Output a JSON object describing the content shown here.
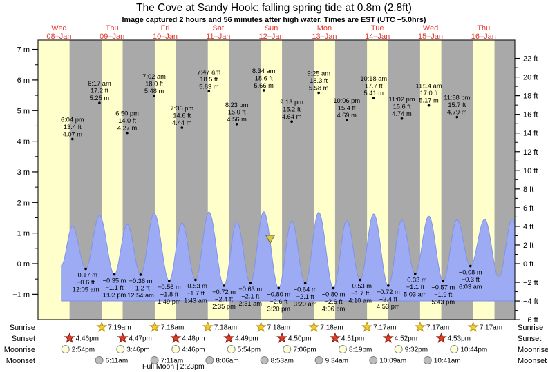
{
  "chart_data": {
    "type": "area",
    "title": "The Cove at Sandy Hook: falling  spring tide at 0.8m (2.8ft)",
    "subtitle": "Image captured 2 hours and 56 minutes after high water. Times are EST (UTC −5.0hrs)",
    "y_axis_left": {
      "unit": "m",
      "min": -1,
      "max": 7,
      "tick_step": 1
    },
    "y_axis_right": {
      "unit": "ft",
      "min": -6,
      "max": 22,
      "tick_step": 2
    },
    "x_axis": {
      "days": [
        {
          "name": "Wed",
          "date": "08–Jan",
          "t_noon": 12
        },
        {
          "name": "Thu",
          "date": "09–Jan",
          "t_noon": 36
        },
        {
          "name": "Fri",
          "date": "10–Jan",
          "t_noon": 60
        },
        {
          "name": "Sat",
          "date": "11–Jan",
          "t_noon": 84
        },
        {
          "name": "Sun",
          "date": "12–Jan",
          "t_noon": 108
        },
        {
          "name": "Mon",
          "date": "13–Jan",
          "t_noon": 132
        },
        {
          "name": "Tue",
          "date": "14–Jan",
          "t_noon": 156
        },
        {
          "name": "Wed",
          "date": "15–Jan",
          "t_noon": 180
        },
        {
          "name": "Thu",
          "date": "16–Jan",
          "t_noon": 204
        }
      ]
    },
    "high_tides": [
      {
        "time": "6:04 pm",
        "ft": "13.4 ft",
        "m": "4.07 m",
        "m_val": 4.07,
        "t": 18.07
      },
      {
        "time": "6:17 am",
        "ft": "17.2 ft",
        "m": "5.25 m",
        "m_val": 5.25,
        "t": 30.28
      },
      {
        "time": "6:50 pm",
        "ft": "14.0 ft",
        "m": "4.27 m",
        "m_val": 4.27,
        "t": 42.83
      },
      {
        "time": "7:02 am",
        "ft": "18.0 ft",
        "m": "5.48 m",
        "m_val": 5.48,
        "t": 55.03
      },
      {
        "time": "7:36 pm",
        "ft": "14.6 ft",
        "m": "4.44 m",
        "m_val": 4.44,
        "t": 67.6
      },
      {
        "time": "7:47 am",
        "ft": "18.5 ft",
        "m": "5.63 m",
        "m_val": 5.63,
        "t": 79.78
      },
      {
        "time": "8:23 pm",
        "ft": "15.0 ft",
        "m": "4.56 m",
        "m_val": 4.56,
        "t": 92.38
      },
      {
        "time": "8:34 am",
        "ft": "18.6 ft",
        "m": "5.66 m",
        "m_val": 5.66,
        "t": 104.57
      },
      {
        "time": "9:13 pm",
        "ft": "15.2 ft",
        "m": "4.64 m",
        "m_val": 4.64,
        "t": 117.22
      },
      {
        "time": "9:25 am",
        "ft": "18.3 ft",
        "m": "5.58 m",
        "m_val": 5.58,
        "t": 129.42
      },
      {
        "time": "10:06 pm",
        "ft": "15.4 ft",
        "m": "4.69 m",
        "m_val": 4.69,
        "t": 142.1
      },
      {
        "time": "10:18 am",
        "ft": "17.7 ft",
        "m": "5.41 m",
        "m_val": 5.41,
        "t": 154.3
      },
      {
        "time": "11:02 pm",
        "ft": "15.6 ft",
        "m": "4.74 m",
        "m_val": 4.74,
        "t": 167.03
      },
      {
        "time": "11:14 am",
        "ft": "17.0 ft",
        "m": "5.17 m",
        "m_val": 5.17,
        "t": 179.23
      },
      {
        "time": "11:58 pm",
        "ft": "15.7 ft",
        "m": "4.79 m",
        "m_val": 4.79,
        "t": 191.97
      }
    ],
    "low_tides": [
      {
        "m": "−0.17 m",
        "ft": "−0.6 ft",
        "time": "12:05 am",
        "m_val": -0.17,
        "t": 24.08
      },
      {
        "m": "−0.35 m",
        "ft": "−1.1 ft",
        "time": "1:02 pm",
        "m_val": -0.35,
        "t": 37.03
      },
      {
        "m": "−0.36 m",
        "ft": "−1.2 ft",
        "time": "12:54 am",
        "m_val": -0.36,
        "t": 48.9
      },
      {
        "m": "−0.56 m",
        "ft": "−1.8 ft",
        "time": "1:49 pm",
        "m_val": -0.56,
        "t": 61.82
      },
      {
        "m": "−0.53 m",
        "ft": "−1.7 ft",
        "time": "1:43 am",
        "m_val": -0.53,
        "t": 73.72
      },
      {
        "m": "−0.72 m",
        "ft": "−2.4 ft",
        "time": "2:35 pm",
        "m_val": -0.72,
        "t": 86.58
      },
      {
        "m": "−0.63 m",
        "ft": "−2.1 ft",
        "time": "2:31 am",
        "m_val": -0.63,
        "t": 98.52
      },
      {
        "m": "−0.80 m",
        "ft": "−2.6 ft",
        "time": "3:20 pm",
        "m_val": -0.8,
        "t": 111.33
      },
      {
        "m": "−0.64 m",
        "ft": "−2.1 ft",
        "time": "3:20 am",
        "m_val": -0.64,
        "t": 123.33
      },
      {
        "m": "−0.80 m",
        "ft": "−2.6 ft",
        "time": "4:06 pm",
        "m_val": -0.8,
        "t": 136.1
      },
      {
        "m": "−0.53 m",
        "ft": "−1.7 ft",
        "time": "4:10 am",
        "m_val": -0.53,
        "t": 148.17
      },
      {
        "m": "−0.72 m",
        "ft": "−2.4 ft",
        "time": "4:53 pm",
        "m_val": -0.72,
        "t": 160.88
      },
      {
        "m": "−0.33 m",
        "ft": "−1.1 ft",
        "time": "5:03 am",
        "m_val": -0.33,
        "t": 173.05
      },
      {
        "m": "−0.57 m",
        "ft": "−1.9 ft",
        "time": "5:43 pm",
        "m_val": -0.57,
        "t": 185.72
      },
      {
        "m": "−0.08 m",
        "ft": "−0.3 ft",
        "time": "6:03 am",
        "m_val": -0.08,
        "t": 198.05
      }
    ],
    "current_marker": {
      "height_m": 0.8,
      "height_label": "0.8m (2.8ft)",
      "t": 107.5
    },
    "astro": {
      "sunrise": {
        "label": "Sunrise",
        "events": [
          {
            "time": "7:19am",
            "t": 31.32
          },
          {
            "time": "7:18am",
            "t": 55.3
          },
          {
            "time": "7:18am",
            "t": 79.3
          },
          {
            "time": "7:18am",
            "t": 103.3
          },
          {
            "time": "7:18am",
            "t": 127.3
          },
          {
            "time": "7:17am",
            "t": 151.28
          },
          {
            "time": "7:17am",
            "t": 175.28
          },
          {
            "time": "7:17am",
            "t": 199.28
          }
        ]
      },
      "sunset": {
        "label": "Sunset",
        "events": [
          {
            "time": "4:46pm",
            "t": 16.77
          },
          {
            "time": "4:47pm",
            "t": 40.78
          },
          {
            "time": "4:48pm",
            "t": 64.8
          },
          {
            "time": "4:49pm",
            "t": 88.82
          },
          {
            "time": "4:50pm",
            "t": 112.83
          },
          {
            "time": "4:51pm",
            "t": 136.85
          },
          {
            "time": "4:52pm",
            "t": 160.87
          },
          {
            "time": "4:53pm",
            "t": 184.88
          }
        ]
      },
      "moonrise": {
        "label": "Moonrise",
        "events": [
          {
            "time": "2:54pm",
            "t": 14.9
          },
          {
            "time": "3:46pm",
            "t": 39.77
          },
          {
            "time": "4:46pm",
            "t": 64.77
          },
          {
            "time": "5:54pm",
            "t": 89.9
          },
          {
            "time": "7:06pm",
            "t": 115.1
          },
          {
            "time": "8:19pm",
            "t": 140.32
          },
          {
            "time": "9:32pm",
            "t": 165.53
          },
          {
            "time": "10:44pm",
            "t": 190.73
          }
        ]
      },
      "moonset": {
        "label": "Moonset",
        "events": [
          {
            "time": "6:11am",
            "t": 30.18
          },
          {
            "time": "7:11am",
            "t": 55.18
          },
          {
            "time": "8:06am",
            "t": 80.1
          },
          {
            "time": "8:53am",
            "t": 104.88
          },
          {
            "time": "9:34am",
            "t": 129.57
          },
          {
            "time": "10:09am",
            "t": 154.15
          },
          {
            "time": "10:41am",
            "t": 178.68
          }
        ]
      },
      "full_moon": {
        "label": "Full Moon",
        "time": "2:23pm"
      }
    },
    "colors": {
      "day_band": "#ffffcb",
      "night_band": "#a9a9a9",
      "curve_fill": "#9cabf3",
      "curve_stroke": "#8092e8",
      "day_label_red": "#e8352a",
      "plot_border": "#222222",
      "sunrise_star": "#f3cd29",
      "sunrise_star_edge": "#b99416",
      "sunset_star": "#e03d24",
      "sunset_star_edge": "#8f1b0e",
      "moonrise_disc": "#ffffd6",
      "moonrise_disc_edge": "#8a8a8a",
      "moonset_disc": "#bcbcbc",
      "moonset_disc_edge": "#7e7e7e",
      "marker": "#d9c83d",
      "marker_edge": "#6b6b4a"
    }
  }
}
